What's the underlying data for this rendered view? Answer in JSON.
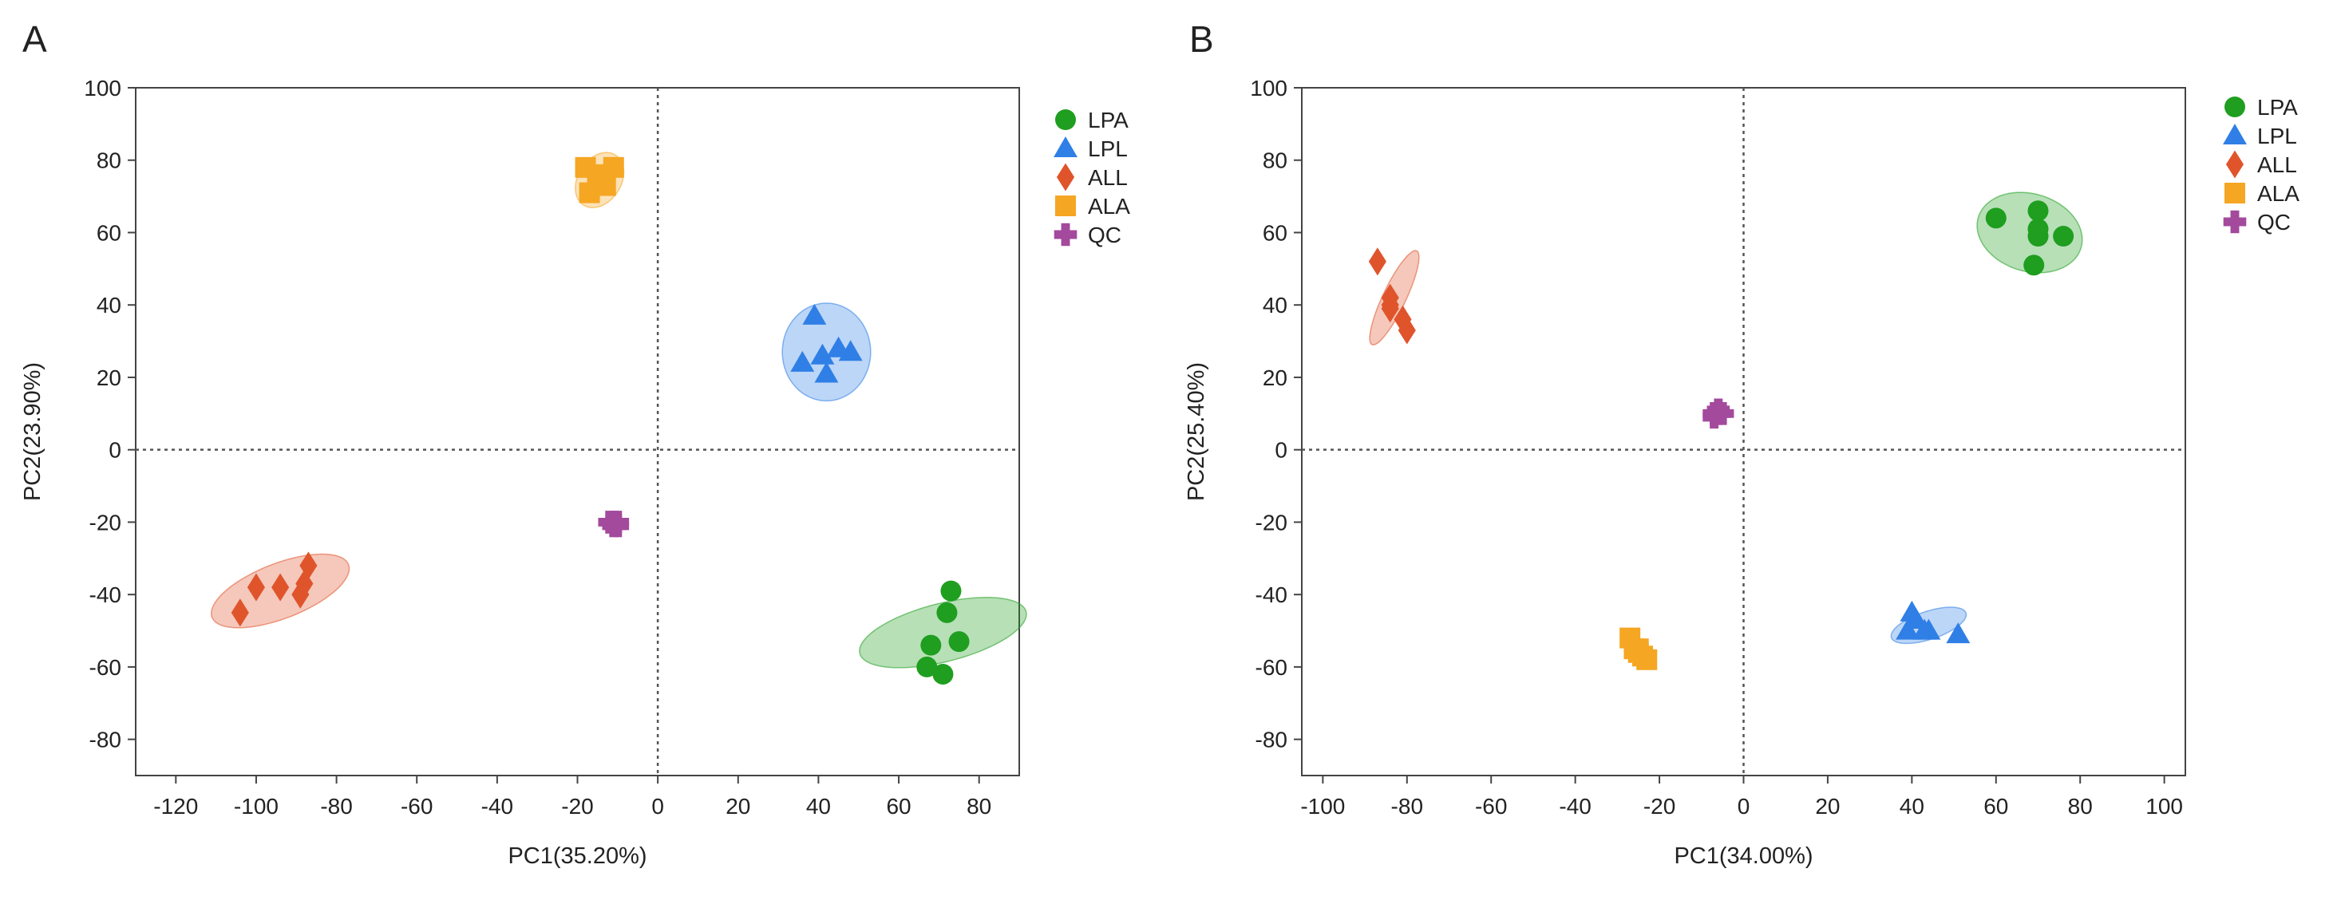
{
  "figure_caption": "",
  "chart_data": [
    {
      "panel_label": "A",
      "type": "scatter",
      "title": "",
      "xlabel": "PC1(35.20%)",
      "ylabel": "PC2(23.90%)",
      "xlim": [
        -130,
        90
      ],
      "ylim": [
        -90,
        100
      ],
      "xticks": [
        -120,
        -100,
        -80,
        -60,
        -40,
        -20,
        0,
        20,
        40,
        60,
        80
      ],
      "yticks": [
        -80,
        -60,
        -40,
        -20,
        0,
        20,
        40,
        60,
        80,
        100
      ],
      "reference_lines": {
        "x": 0,
        "y": 0,
        "style": "dotted"
      },
      "legend": [
        "LPA",
        "LPL",
        "ALL",
        "ALA",
        "QC"
      ],
      "series": [
        {
          "name": "LPA",
          "marker": "circle",
          "color": "#1f9e1f",
          "points": [
            [
              73,
              -39
            ],
            [
              72,
              -45
            ],
            [
              75,
              -53
            ],
            [
              68,
              -54
            ],
            [
              67,
              -60
            ],
            [
              71,
              -62
            ]
          ],
          "ellipse": {
            "cx": 71,
            "cy": -50.5,
            "rx": 8,
            "ry": 21.5,
            "angle": -74
          }
        },
        {
          "name": "LPL",
          "marker": "triangle",
          "color": "#2f7fe6",
          "points": [
            [
              39,
              37
            ],
            [
              36,
              24
            ],
            [
              41,
              26
            ],
            [
              45,
              28
            ],
            [
              48,
              27
            ],
            [
              42,
              21
            ]
          ],
          "ellipse": {
            "cx": 42,
            "cy": 27,
            "rx": 11,
            "ry": 13.5,
            "angle": 0
          }
        },
        {
          "name": "ALL",
          "marker": "diamond",
          "color": "#e0542c",
          "points": [
            [
              -87,
              -32
            ],
            [
              -88,
              -37
            ],
            [
              -89,
              -40
            ],
            [
              -94,
              -38
            ],
            [
              -100,
              -38
            ],
            [
              -104,
              -45
            ]
          ],
          "ellipse": {
            "cx": -94,
            "cy": -39,
            "rx": 18.5,
            "ry": 7.5,
            "angle": 24
          }
        },
        {
          "name": "ALA",
          "marker": "square",
          "color": "#f5a623",
          "points": [
            [
              -18,
              78
            ],
            [
              -11,
              78
            ],
            [
              -15,
              75
            ],
            [
              -13,
              73
            ],
            [
              -17,
              71
            ],
            [
              -15,
              76
            ]
          ],
          "ellipse": {
            "cx": -14.5,
            "cy": 74.5,
            "rx": 5.5,
            "ry": 8,
            "angle": -25
          }
        },
        {
          "name": "QC",
          "marker": "cross",
          "color": "#a34a9d",
          "points": [
            [
              -11,
              -21
            ],
            [
              -10,
              -20
            ],
            [
              -12,
              -20
            ],
            [
              -10,
              -21
            ],
            [
              -11,
              -20
            ]
          ],
          "ellipse": null
        }
      ]
    },
    {
      "panel_label": "B",
      "type": "scatter",
      "title": "",
      "xlabel": "PC1(34.00%)",
      "ylabel": "PC2(25.40%)",
      "xlim": [
        -105,
        105
      ],
      "ylim": [
        -90,
        100
      ],
      "xticks": [
        -100,
        -80,
        -60,
        -40,
        -20,
        0,
        20,
        40,
        60,
        80,
        100
      ],
      "yticks": [
        -80,
        -60,
        -40,
        -20,
        0,
        20,
        40,
        60,
        80,
        100
      ],
      "reference_lines": {
        "x": 0,
        "y": 0,
        "style": "dotted"
      },
      "legend": [
        "LPA",
        "LPL",
        "ALL",
        "ALA",
        "QC"
      ],
      "series": [
        {
          "name": "LPA",
          "marker": "circle",
          "color": "#1f9e1f",
          "points": [
            [
              60,
              64
            ],
            [
              70,
              66
            ],
            [
              70,
              61
            ],
            [
              70,
              59
            ],
            [
              76,
              59
            ],
            [
              69,
              51
            ]
          ],
          "ellipse": {
            "cx": 68,
            "cy": 60,
            "rx": 13,
            "ry": 10.5,
            "angle": -28
          }
        },
        {
          "name": "LPL",
          "marker": "triangle",
          "color": "#2f7fe6",
          "points": [
            [
              40,
              -45
            ],
            [
              41,
              -47
            ],
            [
              39,
              -50
            ],
            [
              43,
              -50
            ],
            [
              44,
              -50
            ],
            [
              51,
              -51
            ]
          ],
          "ellipse": {
            "cx": 44,
            "cy": -48.5,
            "rx": 9.5,
            "ry": 3.8,
            "angle": 22
          }
        },
        {
          "name": "ALL",
          "marker": "diamond",
          "color": "#e0542c",
          "points": [
            [
              -87,
              52
            ],
            [
              -84,
              42
            ],
            [
              -84,
              39
            ],
            [
              -81,
              36
            ],
            [
              -80,
              33
            ],
            [
              -84,
              40
            ]
          ],
          "ellipse": {
            "cx": -83,
            "cy": 42,
            "rx": 14,
            "ry": 2.8,
            "angle": 68
          }
        },
        {
          "name": "ALA",
          "marker": "square",
          "color": "#f5a623",
          "points": [
            [
              -27,
              -52
            ],
            [
              -26,
              -55
            ],
            [
              -25,
              -55
            ],
            [
              -24,
              -57
            ],
            [
              -23,
              -58
            ],
            [
              -25,
              -56
            ]
          ],
          "ellipse": null
        },
        {
          "name": "QC",
          "marker": "cross",
          "color": "#a34a9d",
          "points": [
            [
              -6,
              10
            ],
            [
              -7,
              9
            ],
            [
              -5,
              10
            ],
            [
              -6,
              11
            ],
            [
              -7,
              10
            ]
          ],
          "ellipse": null
        }
      ]
    }
  ]
}
